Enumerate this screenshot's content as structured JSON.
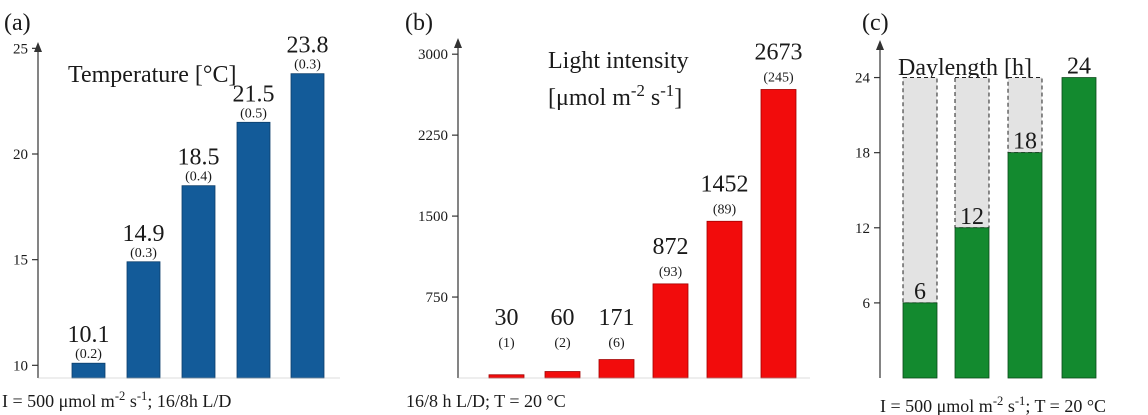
{
  "chart_data": [
    {
      "type": "bar",
      "panel": "(a)",
      "title": "Temperature [°C]",
      "yticks": [
        10,
        15,
        20,
        25
      ],
      "ylim": [
        9.4,
        25.3
      ],
      "values": [
        10.1,
        14.9,
        18.5,
        21.5,
        23.8
      ],
      "value_labels": [
        "10.1",
        "14.9",
        "18.5",
        "21.5",
        "23.8"
      ],
      "errors": [
        "(0.2)",
        "(0.3)",
        "(0.4)",
        "(0.5)",
        "(0.3)"
      ],
      "bar_color": "#135b99",
      "footer": "I = 500 μmol m^-2 s^-1; 16/8h L/D"
    },
    {
      "type": "bar",
      "panel": "(b)",
      "title_line1": "Light intensity",
      "title_line2": "[μmol m^-2 s^-1]",
      "yticks": [
        750,
        1500,
        2250,
        3000
      ],
      "ylim": [
        0,
        3150
      ],
      "values": [
        30,
        60,
        171,
        872,
        1452,
        2673
      ],
      "value_labels": [
        "30",
        "60",
        "171",
        "872",
        "1452",
        "2673"
      ],
      "errors": [
        "(1)",
        "(2)",
        "(6)",
        "(93)",
        "(89)",
        "(245)"
      ],
      "bar_color": "#f20c0c",
      "footer": "16/8 h L/D; T = 20 °C"
    },
    {
      "type": "bar",
      "panel": "(c)",
      "title": "Daylength [h]",
      "yticks": [
        6,
        12,
        18,
        24
      ],
      "ylim": [
        0,
        27
      ],
      "values": [
        6,
        12,
        18,
        24
      ],
      "value_labels": [
        "6",
        "12",
        "18",
        "24"
      ],
      "envelope": 24,
      "bar_color": "#138a2f",
      "envelope_color": "#e3e3e3",
      "footer": "I = 500 μmol m^-2 s^-1; T = 20 °C"
    }
  ]
}
